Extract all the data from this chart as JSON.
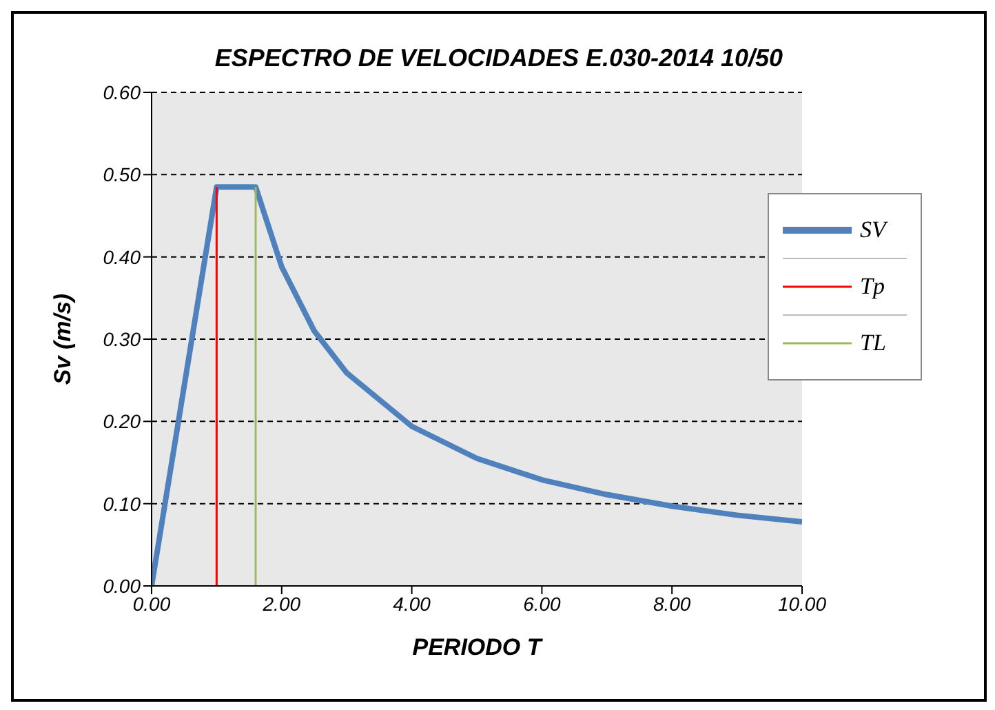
{
  "chart_data": {
    "type": "line",
    "title": "ESPECTRO DE VELOCIDADES E.030-2014 10/50",
    "xlabel": "PERIODO T",
    "ylabel": "Sv (m/s)",
    "xlim": [
      0,
      10
    ],
    "xticks": [
      {
        "value": 0,
        "label": "0.00"
      },
      {
        "value": 2,
        "label": "2.00"
      },
      {
        "value": 4,
        "label": "4.00"
      },
      {
        "value": 6,
        "label": "6.00"
      },
      {
        "value": 8,
        "label": "8.00"
      },
      {
        "value": 10,
        "label": "10.00"
      }
    ],
    "ylim": [
      0,
      0.6
    ],
    "yticks": [
      {
        "value": 0,
        "label": "0.00"
      },
      {
        "value": 0.1,
        "label": "0.10"
      },
      {
        "value": 0.2,
        "label": "0.20"
      },
      {
        "value": 0.3,
        "label": "0.30"
      },
      {
        "value": 0.4,
        "label": "0.40"
      },
      {
        "value": 0.5,
        "label": "0.50"
      },
      {
        "value": 0.6,
        "label": "0.60"
      }
    ],
    "grid": "y",
    "legend": "right",
    "marker": "none",
    "line_style": "solid",
    "series": [
      {
        "name": "SV",
        "color": "#4f81bd",
        "x": [
          0,
          1.0,
          1.6,
          2,
          2.5,
          3,
          4,
          5,
          6,
          7,
          8,
          9,
          10
        ],
        "values": [
          0,
          0.485,
          0.485,
          0.388,
          0.31,
          0.259,
          0.194,
          0.155,
          0.129,
          0.111,
          0.097,
          0.086,
          0.078
        ]
      },
      {
        "name": "Tp",
        "color": "#ff0000",
        "x": [
          1.0,
          1.0
        ],
        "values": [
          0,
          0.485
        ]
      },
      {
        "name": "TL",
        "color": "#9bbb59",
        "x": [
          1.6,
          1.6
        ],
        "values": [
          0,
          0.485
        ]
      }
    ]
  }
}
